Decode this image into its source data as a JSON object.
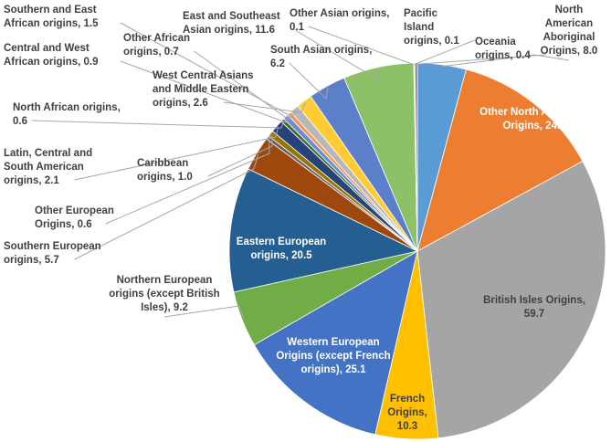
{
  "chart_data": {
    "type": "pie",
    "title": "",
    "start_angle_deg": 90,
    "direction": "clockwise",
    "slices": [
      {
        "label": "North American Aboriginal Origins, 8.0",
        "category": "North American Aboriginal Origins",
        "value": 8.0,
        "color": "#5b9bd5"
      },
      {
        "label": "Other North American Origins, 24.7",
        "category": "Other North American Origins",
        "value": 24.7,
        "color": "#ed7d31"
      },
      {
        "label": "British Isles Origins, 59.7",
        "category": "British Isles Origins",
        "value": 59.7,
        "color": "#a5a5a5"
      },
      {
        "label": "French Origins, 10.3",
        "category": "French Origins",
        "value": 10.3,
        "color": "#ffc000"
      },
      {
        "label": "Western European Origins (except French origins), 25.1",
        "category": "Western European Origins (except French origins)",
        "value": 25.1,
        "color": "#4472c4"
      },
      {
        "label": "Northern European origins (except British Isles), 9.2",
        "category": "Northern European origins (except British Isles)",
        "value": 9.2,
        "color": "#70ad47"
      },
      {
        "label": "Eastern European origins, 20.5",
        "category": "Eastern European origins",
        "value": 20.5,
        "color": "#255e91"
      },
      {
        "label": "Southern European origins, 5.7",
        "category": "Southern European origins",
        "value": 5.7,
        "color": "#9e480e"
      },
      {
        "label": "Other European Origins, 0.6",
        "category": "Other European Origins",
        "value": 0.6,
        "color": "#636363"
      },
      {
        "label": "Caribbean origins, 1.0",
        "category": "Caribbean origins",
        "value": 1.0,
        "color": "#997300"
      },
      {
        "label": "Latin, Central and South American origins, 2.1",
        "category": "Latin, Central and South American origins",
        "value": 2.1,
        "color": "#264478"
      },
      {
        "label": "North African origins, 0.6",
        "category": "North African origins",
        "value": 0.6,
        "color": "#43682b"
      },
      {
        "label": "Central and West African origins, 0.9",
        "category": "Central and West African origins",
        "value": 0.9,
        "color": "#698ed0"
      },
      {
        "label": "Other African origins, 0.7",
        "category": "Other African origins",
        "value": 0.7,
        "color": "#f1975a"
      },
      {
        "label": "Southern and East African origins, 1.5",
        "category": "Southern and East African origins",
        "value": 1.5,
        "color": "#b7b7b7"
      },
      {
        "label": "West Central Asians and Middle Eastern origins, 2.6",
        "category": "West Central Asians and Middle Eastern origins",
        "value": 2.6,
        "color": "#ffcd33"
      },
      {
        "label": "South Asian origins, 6.2",
        "category": "South Asian origins",
        "value": 6.2,
        "color": "#5b7fc8"
      },
      {
        "label": "East and Southeast Asian origins, 11.6",
        "category": "East and Southeast Asian origins",
        "value": 11.6,
        "color": "#8cc168"
      },
      {
        "label": "Other Asian origins, 0.1",
        "category": "Other Asian origins",
        "value": 0.1,
        "color": "#2e75b6"
      },
      {
        "label": "Pacific Island origins, 0.1",
        "category": "Pacific Island origins",
        "value": 0.1,
        "color": "#c55a11"
      },
      {
        "label": "Oceania origins, 0.4",
        "category": "Oceania origins",
        "value": 0.4,
        "color": "#7b7b7b"
      }
    ],
    "legend": "none",
    "data_labels": "outside with leader lines; some inside"
  }
}
